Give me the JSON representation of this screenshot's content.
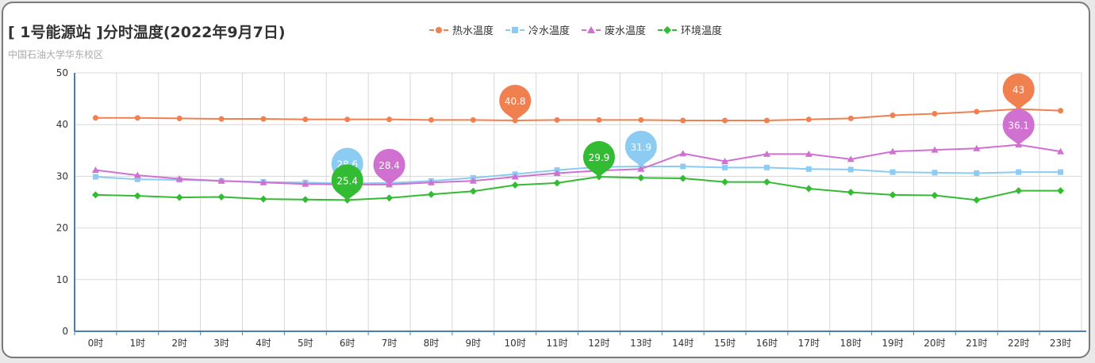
{
  "title": "[ 1号能源站 ]分时温度(2022年9月7日)",
  "subtitle": "中国石油大学华东校区",
  "chart_data": {
    "type": "line",
    "categories": [
      "0时",
      "1时",
      "2时",
      "3时",
      "4时",
      "5时",
      "6时",
      "7时",
      "8时",
      "9时",
      "10时",
      "11时",
      "12时",
      "13时",
      "14时",
      "15时",
      "16时",
      "17时",
      "18时",
      "19时",
      "20时",
      "21时",
      "22时",
      "23时"
    ],
    "y_ticks": [
      "0",
      "10",
      "20",
      "30",
      "40",
      "50"
    ],
    "ylim": [
      0,
      50
    ],
    "grid": true,
    "legend_position": "top-center",
    "series": [
      {
        "name": "热水温度",
        "color": "#f08050",
        "marker": "circle",
        "values": [
          41.3,
          41.3,
          41.2,
          41.1,
          41.1,
          41.0,
          41.0,
          41.0,
          40.9,
          40.9,
          40.8,
          40.9,
          40.9,
          40.9,
          40.8,
          40.8,
          40.8,
          41.0,
          41.2,
          41.8,
          42.1,
          42.5,
          43.0,
          42.7
        ],
        "pins": [
          {
            "index": 10,
            "label": "40.8"
          },
          {
            "index": 22,
            "label": "43"
          }
        ]
      },
      {
        "name": "冷水温度",
        "color": "#8ccbf2",
        "marker": "square",
        "values": [
          29.9,
          29.4,
          29.3,
          29.1,
          28.9,
          28.8,
          28.6,
          28.7,
          29.1,
          29.7,
          30.4,
          31.2,
          31.8,
          31.9,
          31.9,
          31.7,
          31.7,
          31.4,
          31.3,
          30.8,
          30.7,
          30.6,
          30.8,
          30.8
        ],
        "pins": [
          {
            "index": 6,
            "label": "28.6"
          },
          {
            "index": 13,
            "label": "31.9"
          }
        ]
      },
      {
        "name": "废水温度",
        "color": "#d070d0",
        "marker": "triangle",
        "values": [
          31.2,
          30.2,
          29.5,
          29.1,
          28.8,
          28.5,
          28.4,
          28.4,
          28.8,
          29.1,
          29.9,
          30.6,
          31.1,
          31.4,
          34.4,
          32.9,
          34.3,
          34.3,
          33.3,
          34.8,
          35.1,
          35.4,
          36.1,
          34.8
        ],
        "pins": [
          {
            "index": 7,
            "label": "28.4"
          },
          {
            "index": 22,
            "label": "36.1"
          }
        ]
      },
      {
        "name": "环境温度",
        "color": "#33bb33",
        "marker": "diamond",
        "values": [
          26.4,
          26.2,
          25.9,
          26.0,
          25.6,
          25.5,
          25.4,
          25.8,
          26.5,
          27.1,
          28.3,
          28.7,
          29.9,
          29.7,
          29.6,
          28.9,
          28.9,
          27.6,
          26.9,
          26.4,
          26.3,
          25.4,
          27.2,
          27.2
        ],
        "pins": [
          {
            "index": 6,
            "label": "25.4"
          },
          {
            "index": 12,
            "label": "29.9"
          }
        ]
      }
    ]
  }
}
